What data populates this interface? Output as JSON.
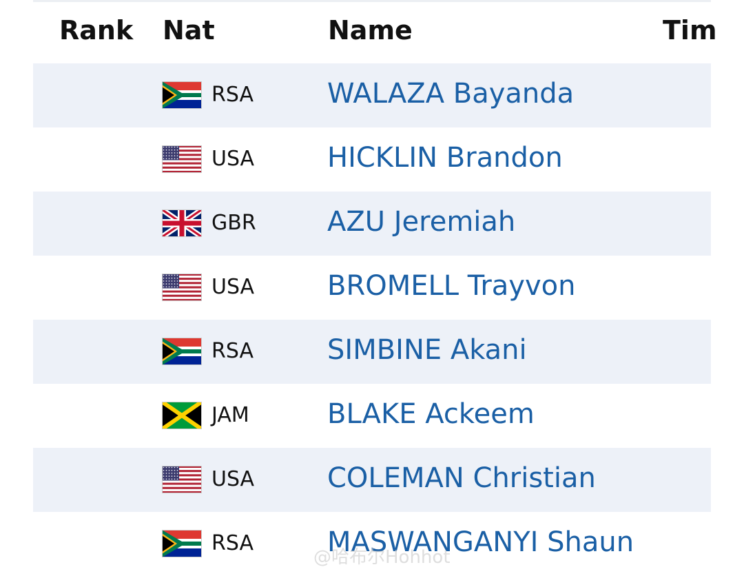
{
  "header": {
    "columns": [
      "Rank",
      "Nat",
      "Name",
      "Tim"
    ]
  },
  "rows": [
    {
      "nat": "RSA",
      "name": "WALAZA Bayanda"
    },
    {
      "nat": "USA",
      "name": "HICKLIN Brandon"
    },
    {
      "nat": "GBR",
      "name": "AZU Jeremiah"
    },
    {
      "nat": "USA",
      "name": "BROMELL Trayvon"
    },
    {
      "nat": "RSA",
      "name": "SIMBINE Akani"
    },
    {
      "nat": "JAM",
      "name": "BLAKE Ackeem"
    },
    {
      "nat": "USA",
      "name": "COLEMAN Christian"
    },
    {
      "nat": "RSA",
      "name": "MASWANGANYI Shaun"
    }
  ],
  "watermark": "@哈布尔Hohhot"
}
